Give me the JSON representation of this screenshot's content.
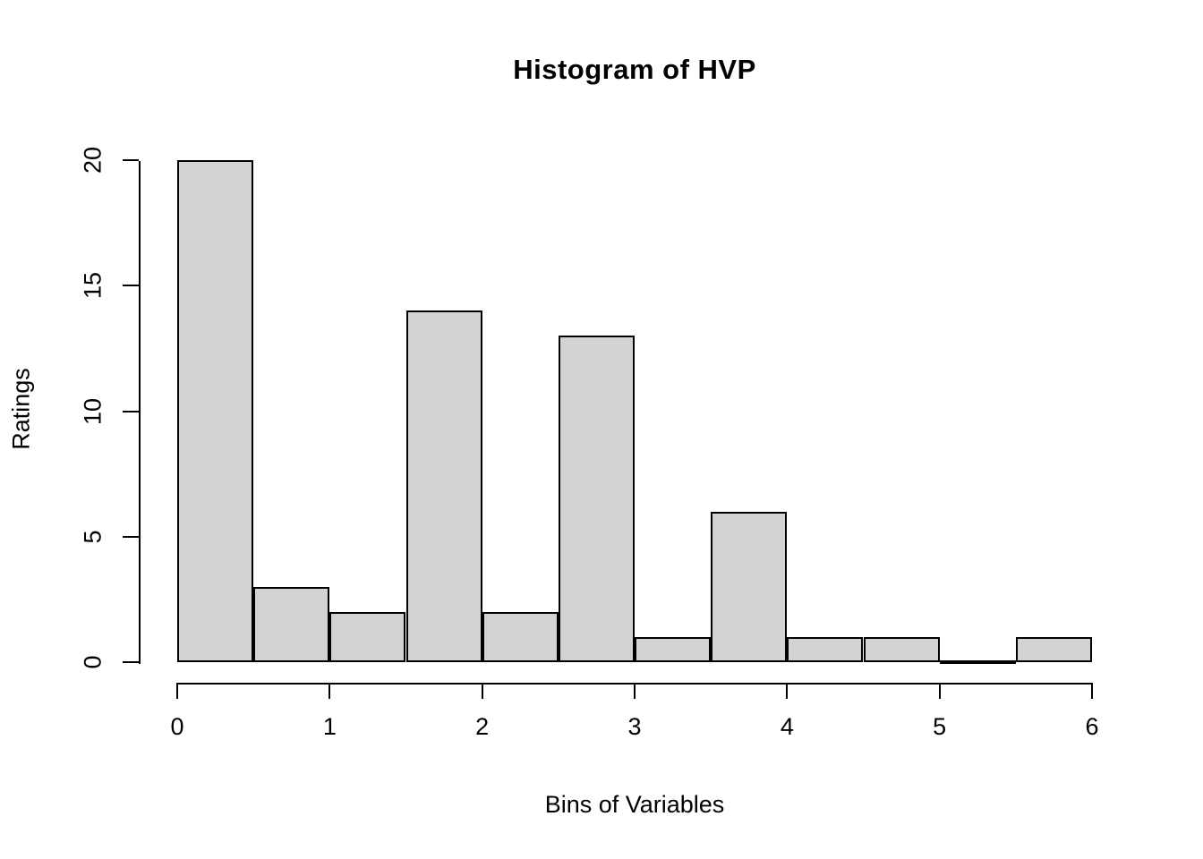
{
  "title": "Histogram of HVP",
  "x_axis": {
    "label": "Bins of Variables",
    "ticks": [
      0,
      1,
      2,
      3,
      4,
      5,
      6
    ]
  },
  "y_axis": {
    "label": "Ratings",
    "ticks": [
      0,
      5,
      10,
      15,
      20
    ]
  },
  "colors": {
    "background": "#ffffff",
    "bar_fill": "#d3d3d3",
    "bar_border": "#000000",
    "axis": "#000000",
    "text": "#000000"
  },
  "chart_data": {
    "type": "bar",
    "subtype": "histogram",
    "title": "Histogram of HVP",
    "xlabel": "Bins of Variables",
    "ylabel": "Ratings",
    "xlim": [
      0,
      6
    ],
    "ylim": [
      0,
      20
    ],
    "bin_width": 0.5,
    "bin_edges": [
      0,
      0.5,
      1,
      1.5,
      2,
      2.5,
      3,
      3.5,
      4,
      4.5,
      5,
      5.5,
      6
    ],
    "counts": [
      20,
      3,
      2,
      14,
      2,
      13,
      1,
      6,
      1,
      1,
      0,
      1
    ],
    "x_ticks": [
      0,
      1,
      2,
      3,
      4,
      5,
      6
    ],
    "y_ticks": [
      0,
      5,
      10,
      15,
      20
    ],
    "grid": false,
    "legend": false,
    "bar_fill": "#d3d3d3",
    "bar_border": "#000000"
  }
}
